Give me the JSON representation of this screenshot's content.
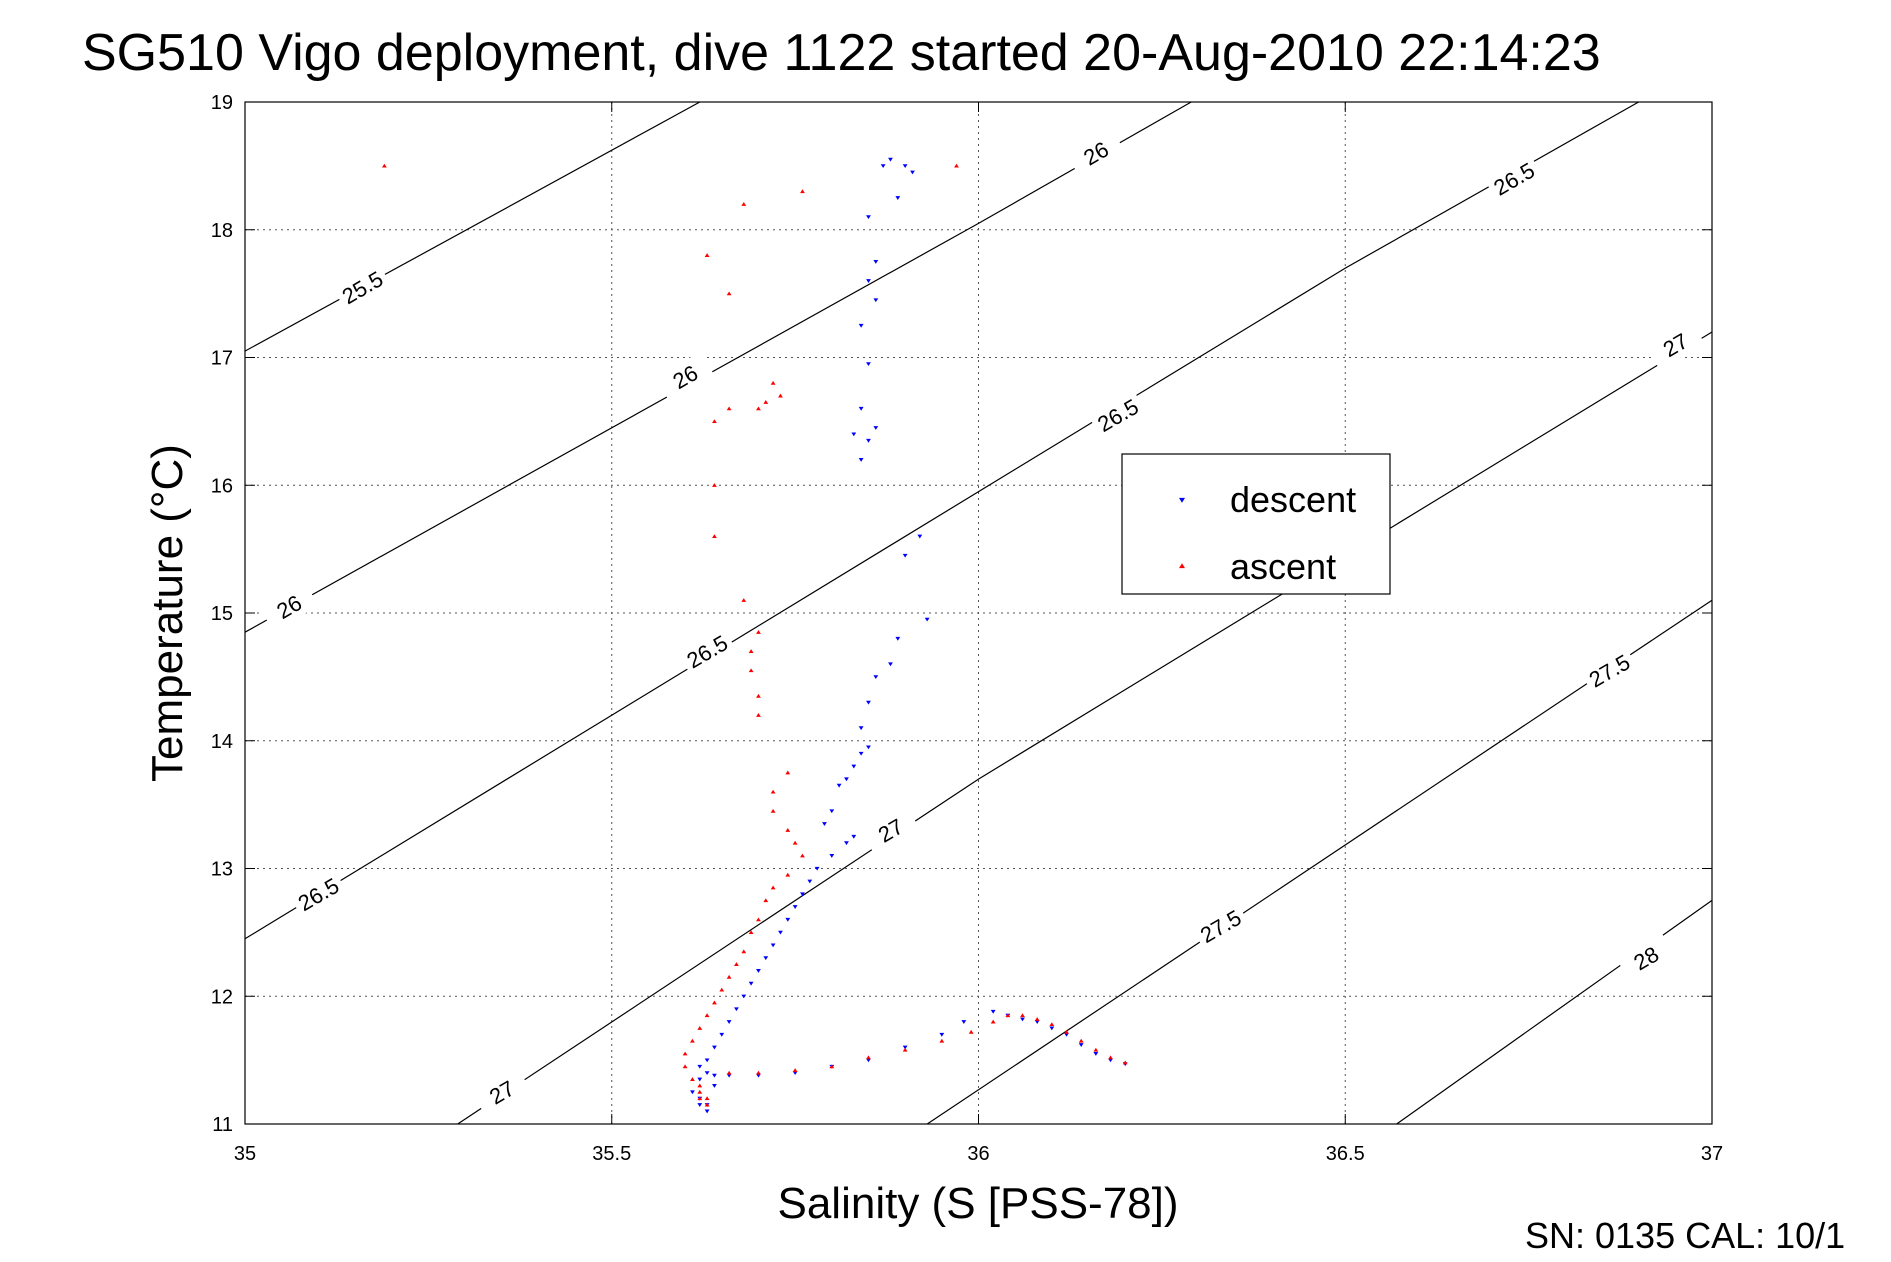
{
  "chart_data": {
    "type": "scatter",
    "title": "SG510 Vigo deployment, dive 1122 started 20-Aug-2010 22:14:23",
    "xlabel": "Salinity (S [PSS-78])",
    "ylabel": "Temperature (°C)",
    "xlim": [
      35,
      37
    ],
    "ylim": [
      11,
      19
    ],
    "x_ticks": [
      "35",
      "35.5",
      "36",
      "36.5",
      "37"
    ],
    "y_ticks": [
      "11",
      "12",
      "13",
      "14",
      "15",
      "16",
      "17",
      "18",
      "19"
    ],
    "grid": true,
    "legend_position": "center-right",
    "footer": "SN: 0135  CAL: 10/1",
    "colors": {
      "descent": "#0000ff",
      "ascent": "#ff0000",
      "contour": "#000000"
    },
    "contours": [
      {
        "label": "25.5",
        "points": [
          [
            35.0,
            17.05
          ],
          [
            35.62,
            19.0
          ]
        ],
        "label_at": [
          35.16,
          17.55
        ]
      },
      {
        "label": "26",
        "points": [
          [
            35.0,
            14.85
          ],
          [
            36.0,
            18.05
          ],
          [
            36.29,
            19.0
          ]
        ],
        "label_at": [
          35.06,
          15.05
        ]
      },
      {
        "label": "26",
        "points": [],
        "label_at": [
          35.6,
          16.85
        ]
      },
      {
        "label": "26",
        "points": [],
        "label_at": [
          36.16,
          18.6
        ]
      },
      {
        "label": "26.5",
        "points": [
          [
            35.0,
            12.45
          ],
          [
            36.5,
            17.7
          ],
          [
            36.9,
            19.0
          ]
        ],
        "label_at": [
          35.1,
          12.8
        ]
      },
      {
        "label": "26.5",
        "points": [],
        "label_at": [
          35.63,
          14.7
        ]
      },
      {
        "label": "26.5",
        "points": [],
        "label_at": [
          36.19,
          16.55
        ]
      },
      {
        "label": "26.5",
        "points": [],
        "label_at": [
          36.73,
          18.4
        ]
      },
      {
        "label": "27",
        "points": [
          [
            35.29,
            11.0
          ],
          [
            36.0,
            13.7
          ],
          [
            37.0,
            17.2
          ]
        ],
        "label_at": [
          35.35,
          11.25
        ]
      },
      {
        "label": "27",
        "points": [],
        "label_at": [
          35.88,
          13.3
        ]
      },
      {
        "label": "27",
        "points": [],
        "label_at": [
          36.95,
          17.1
        ]
      },
      {
        "label": "27.5",
        "points": [
          [
            35.93,
            11.0
          ],
          [
            37.0,
            15.1
          ]
        ],
        "label_at": [
          36.33,
          12.55
        ]
      },
      {
        "label": "27.5",
        "points": [],
        "label_at": [
          36.86,
          14.55
        ]
      },
      {
        "label": "28",
        "points": [
          [
            36.57,
            11.0
          ],
          [
            37.0,
            12.75
          ]
        ],
        "label_at": [
          36.91,
          12.3
        ]
      }
    ],
    "series": [
      {
        "name": "descent",
        "marker": "triangle-down",
        "color": "#0000ff",
        "x": [
          35.88,
          35.9,
          35.91,
          35.87,
          35.89,
          35.85,
          35.86,
          35.85,
          35.86,
          35.84,
          35.85,
          35.84,
          35.86,
          35.85,
          35.84,
          35.83,
          35.92,
          35.9,
          35.93,
          35.89,
          35.88,
          35.86,
          35.85,
          35.84,
          35.85,
          35.84,
          35.83,
          35.82,
          35.81,
          35.8,
          35.79,
          35.83,
          35.82,
          35.8,
          35.78,
          35.77,
          35.76,
          35.75,
          35.74,
          35.73,
          35.72,
          35.71,
          35.7,
          35.69,
          35.68,
          35.67,
          35.66,
          35.65,
          35.64,
          35.63,
          35.62,
          35.62,
          35.63,
          35.64,
          35.63,
          35.62,
          35.64,
          35.66,
          35.7,
          35.75,
          35.8,
          35.85,
          35.9,
          35.95,
          35.98,
          36.02,
          36.04,
          36.06,
          36.08,
          36.1,
          36.12,
          36.14,
          36.16,
          36.18,
          36.2,
          35.61,
          35.62,
          35.63
        ],
        "y": [
          18.55,
          18.5,
          18.45,
          18.5,
          18.25,
          18.1,
          17.75,
          17.6,
          17.45,
          17.25,
          16.95,
          16.6,
          16.45,
          16.35,
          16.2,
          16.4,
          15.6,
          15.45,
          14.95,
          14.8,
          14.6,
          14.5,
          14.3,
          14.1,
          13.95,
          13.9,
          13.8,
          13.7,
          13.65,
          13.45,
          13.35,
          13.25,
          13.2,
          13.1,
          13.0,
          12.9,
          12.8,
          12.7,
          12.6,
          12.5,
          12.4,
          12.3,
          12.2,
          12.1,
          12.0,
          11.9,
          11.8,
          11.7,
          11.6,
          11.5,
          11.35,
          11.2,
          11.15,
          11.3,
          11.4,
          11.45,
          11.38,
          11.38,
          11.38,
          11.4,
          11.45,
          11.5,
          11.6,
          11.7,
          11.8,
          11.88,
          11.85,
          11.82,
          11.8,
          11.75,
          11.7,
          11.62,
          11.55,
          11.5,
          11.47,
          11.25,
          11.15,
          11.1
        ]
      },
      {
        "name": "ascent",
        "marker": "triangle-up",
        "color": "#ff0000",
        "x": [
          35.19,
          35.97,
          35.76,
          35.68,
          35.63,
          35.66,
          35.72,
          35.73,
          35.71,
          35.7,
          35.66,
          35.64,
          35.64,
          35.64,
          35.68,
          35.7,
          35.69,
          35.69,
          35.7,
          35.7,
          35.74,
          35.72,
          35.72,
          35.74,
          35.75,
          35.76,
          35.74,
          35.72,
          35.71,
          35.7,
          35.69,
          35.68,
          35.67,
          35.66,
          35.65,
          35.64,
          35.63,
          35.62,
          35.61,
          35.6,
          35.6,
          35.61,
          35.62,
          35.62,
          35.63,
          35.66,
          35.7,
          35.75,
          35.8,
          35.85,
          35.9,
          35.95,
          35.99,
          36.02,
          36.04,
          36.06,
          36.08,
          36.1,
          36.12,
          36.14,
          36.16,
          36.18,
          36.2,
          35.62,
          35.63
        ],
        "y": [
          18.5,
          18.5,
          18.3,
          18.2,
          17.8,
          17.5,
          16.8,
          16.7,
          16.65,
          16.6,
          16.6,
          16.5,
          16.0,
          15.6,
          15.1,
          14.85,
          14.7,
          14.55,
          14.35,
          14.2,
          13.75,
          13.6,
          13.45,
          13.3,
          13.2,
          13.1,
          12.95,
          12.85,
          12.75,
          12.6,
          12.5,
          12.35,
          12.25,
          12.15,
          12.05,
          11.95,
          11.85,
          11.75,
          11.65,
          11.55,
          11.45,
          11.35,
          11.25,
          11.2,
          11.15,
          11.4,
          11.4,
          11.42,
          11.45,
          11.52,
          11.58,
          11.65,
          11.72,
          11.8,
          11.85,
          11.85,
          11.82,
          11.78,
          11.72,
          11.65,
          11.58,
          11.52,
          11.48,
          11.3,
          11.2
        ]
      }
    ]
  }
}
